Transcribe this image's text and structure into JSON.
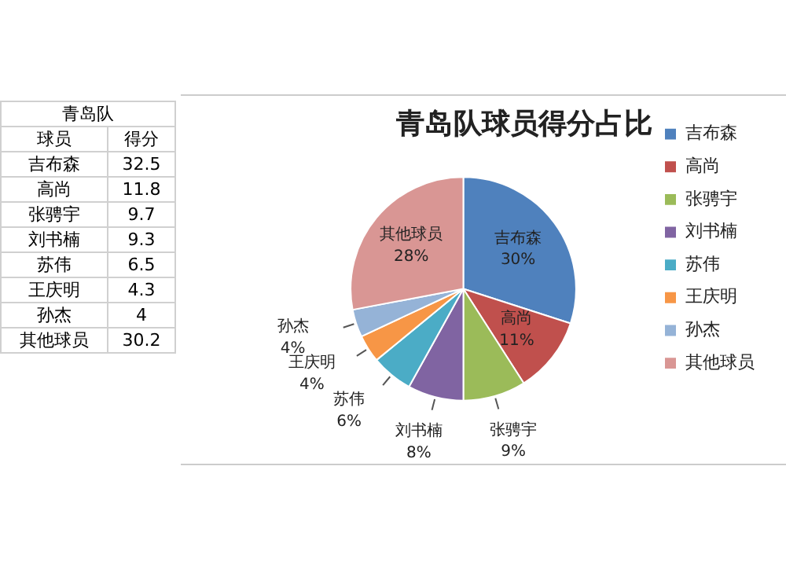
{
  "chart_data": {
    "type": "pie",
    "title": "青岛队球员得分占比",
    "categories": [
      "吉布森",
      "高尚",
      "张骋宇",
      "刘书楠",
      "苏伟",
      "王庆明",
      "孙杰",
      "其他球员"
    ],
    "values": [
      30,
      11,
      9,
      8,
      6,
      4,
      4,
      28
    ],
    "colors": [
      "#4f81bd",
      "#c0504d",
      "#9bbb59",
      "#8064a2",
      "#4bacc6",
      "#f79646",
      "#95b3d7",
      "#d99694"
    ],
    "value_labels": [
      "30%",
      "11%",
      "9%",
      "8%",
      "6%",
      "4%",
      "4%",
      "28%"
    ],
    "annotations": [
      "青岛队",
      "球员",
      "得分",
      "32.5",
      "11.8",
      "9.7",
      "9.3",
      "6.5",
      "4.3",
      "4",
      "30.2"
    ],
    "legend": "right"
  }
}
